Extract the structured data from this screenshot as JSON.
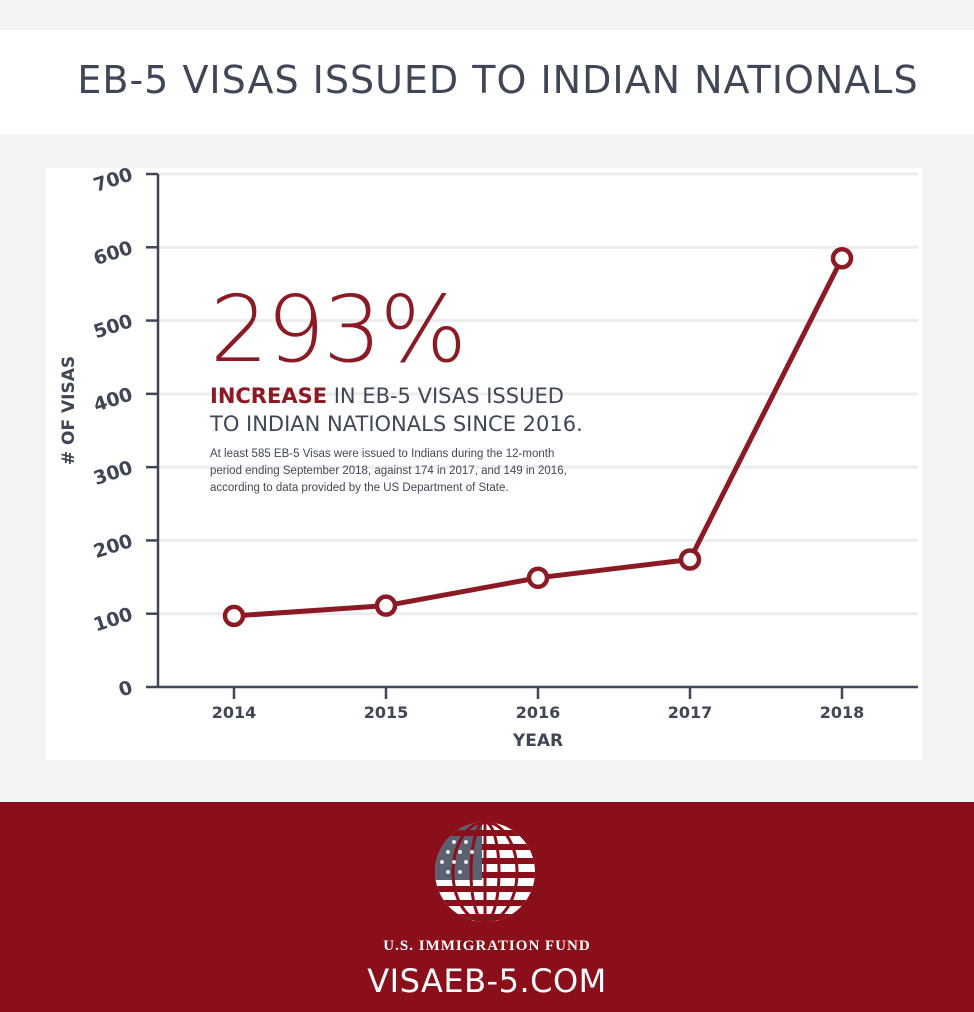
{
  "header": {
    "title": "EB-5 VISAS ISSUED TO INDIAN NATIONALS"
  },
  "callout": {
    "percent": "293%",
    "headline_accent": "INCREASE",
    "headline_line1_rest": " IN EB-5 VISAS ISSUED",
    "headline_line2": "TO INDIAN NATIONALS SINCE 2016.",
    "note_line1": "At least 585 EB-5 Visas were issued to Indians during the 12-month",
    "note_line2": "period ending September 2018, against 174 in 2017, and 149 in 2016,",
    "note_line3": "according to data provided by the US Department of State."
  },
  "footer": {
    "brand": "U.S. IMMIGRATION FUND",
    "website": "VISAEB-5.COM"
  },
  "colors": {
    "accent": "#8b1a24",
    "text": "#3f4756",
    "footer_bg": "#8b0f1a",
    "grid": "#ececec"
  },
  "chart_data": {
    "type": "line",
    "title": "EB-5 VISAS ISSUED TO INDIAN NATIONALS",
    "xlabel": "YEAR",
    "ylabel": "# OF VISAS",
    "categories": [
      "2014",
      "2015",
      "2016",
      "2017",
      "2018"
    ],
    "series": [
      {
        "values": [
          97,
          111,
          149,
          174,
          585
        ]
      }
    ],
    "ylim": [
      0,
      700
    ],
    "yticks": [
      0,
      100,
      200,
      300,
      400,
      500,
      600,
      700
    ],
    "grid": true,
    "legend": "none",
    "marker": "open-circle"
  }
}
